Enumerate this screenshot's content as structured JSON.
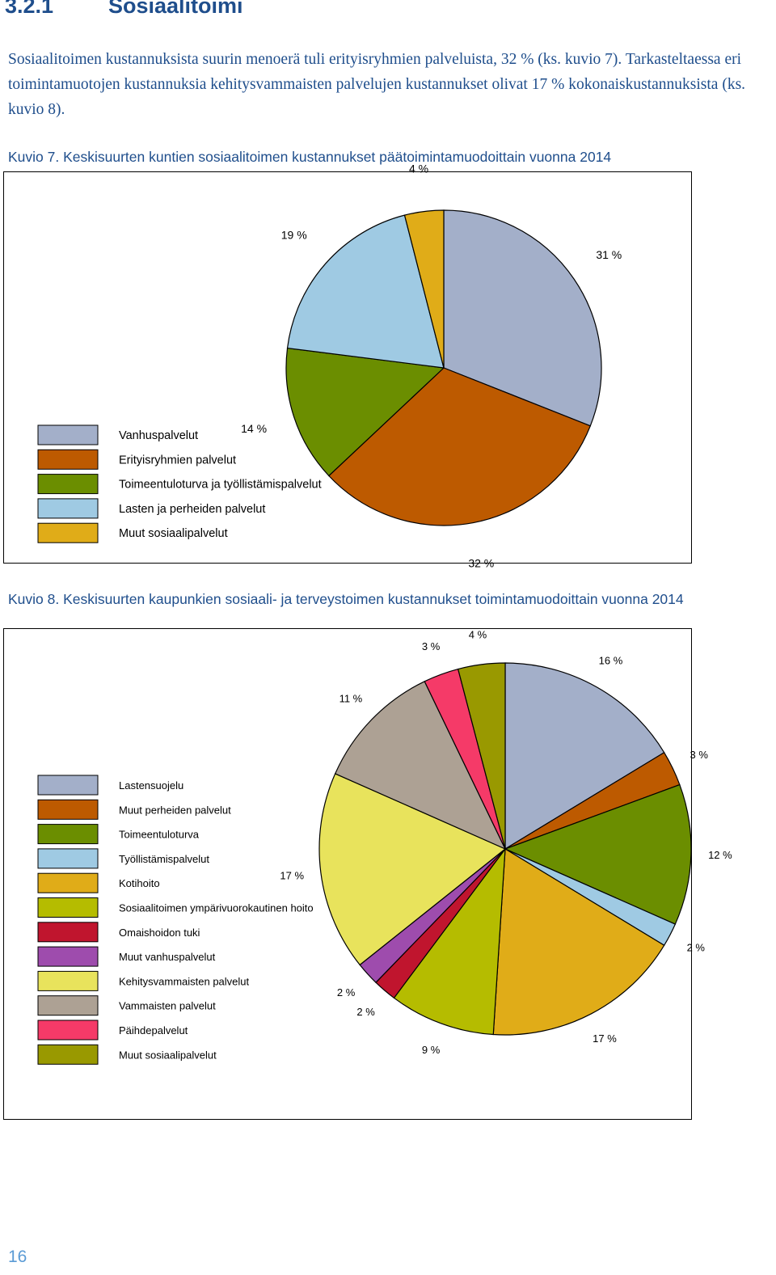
{
  "section": {
    "number": "3.2.1",
    "title": "Sosiaalitoimi"
  },
  "body_text": "Sosiaalitoimen kustannuksista suurin menoerä tuli erityisryhmien palveluista, 32 % (ks. kuvio 7). Tarkasteltaessa eri toimintamuotojen kustannuksia kehitysvammaisten palvelujen kustannukset olivat 17 % kokonaiskustannuksista (ks. kuvio 8).",
  "figure7": {
    "caption": "Kuvio 7. Keskisuurten kuntien sosiaalitoimen kustannukset päätoimintamuodoittain vuonna 2014"
  },
  "figure8": {
    "caption": "Kuvio 8. Keskisuurten kaupunkien sosiaali- ja terveystoimen kustannukset toimintamuodoittain vuonna 2014"
  },
  "page_number": "16",
  "chart_data": [
    {
      "type": "pie",
      "legend": "left",
      "series": [
        {
          "name": "Vanhuspalvelut",
          "value": 31,
          "label": "31 %",
          "color": "#a3afc9"
        },
        {
          "name": "Erityisryhmien palvelut",
          "value": 32,
          "label": "32 %",
          "color": "#bd5a00"
        },
        {
          "name": "Toimeentuloturva ja työllistämispalvelut",
          "value": 14,
          "label": "14 %",
          "color": "#6b8e00"
        },
        {
          "name": "Lasten ja perheiden palvelut",
          "value": 19,
          "label": "19 %",
          "color": "#9fcae3"
        },
        {
          "name": "Muut sosiaalipalvelut",
          "value": 4,
          "label": "4 %",
          "color": "#e0ac18"
        }
      ]
    },
    {
      "type": "pie",
      "legend": "left",
      "series": [
        {
          "name": "Lastensuojelu",
          "value": 16,
          "label": "16 %",
          "color": "#a3afc9"
        },
        {
          "name": "Muut perheiden palvelut",
          "value": 3,
          "label": "3 %",
          "color": "#bd5a00"
        },
        {
          "name": "Toimeentuloturva",
          "value": 12,
          "label": "12 %",
          "color": "#6b8e00"
        },
        {
          "name": "Työllistämispalvelut",
          "value": 2,
          "label": "2 %",
          "color": "#9fcae3"
        },
        {
          "name": "Kotihoito",
          "value": 17,
          "label": "17 %",
          "color": "#e0ac18"
        },
        {
          "name": "Sosiaalitoimen ympärivuorokautinen hoito",
          "value": 9,
          "label": "9 %",
          "color": "#b5bc00"
        },
        {
          "name": "Omaishoidon tuki",
          "value": 2,
          "label": "2 %",
          "color": "#c0152e"
        },
        {
          "name": "Muut vanhuspalvelut",
          "value": 2,
          "label": "2 %",
          "color": "#9e4cad"
        },
        {
          "name": "Kehitysvammaisten palvelut",
          "value": 17,
          "label": "17 %",
          "color": "#e8e35c"
        },
        {
          "name": "Vammaisten palvelut",
          "value": 11,
          "label": "11 %",
          "color": "#ada194"
        },
        {
          "name": "Päihdepalvelut",
          "value": 3,
          "label": "3 %",
          "color": "#f53a68"
        },
        {
          "name": "Muut sosiaalipalvelut",
          "value": 4,
          "label": "4 %",
          "color": "#999900"
        }
      ]
    }
  ]
}
